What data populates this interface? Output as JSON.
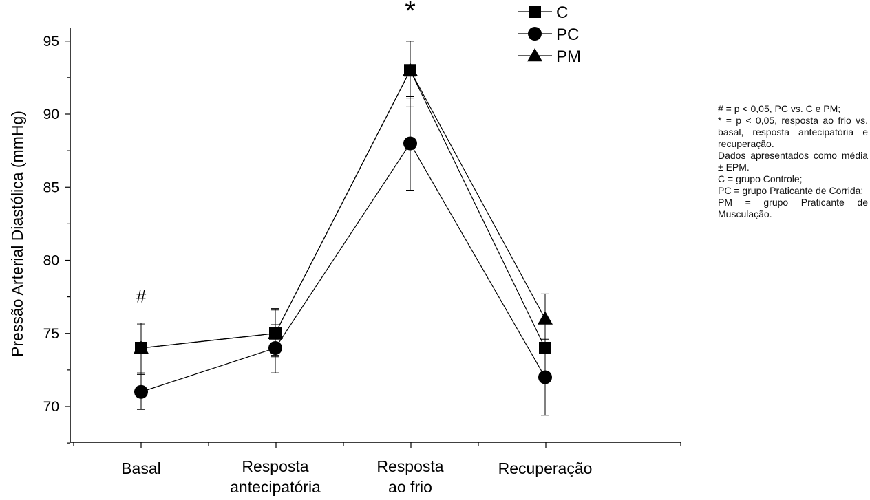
{
  "chart_data": {
    "type": "line",
    "ylabel": "Pressão Arterial Diastólica (mmHg)",
    "xlabel": "",
    "categories": [
      [
        "Basal"
      ],
      [
        "Resposta",
        "antecipatória"
      ],
      [
        "Resposta",
        "ao frio"
      ],
      [
        "Recuperação"
      ]
    ],
    "ylim": [
      67.5,
      95
    ],
    "yticks": [
      70,
      75,
      80,
      85,
      90,
      95
    ],
    "grid": false,
    "legend_position": "top-right",
    "series": [
      {
        "name": "C",
        "marker": "square",
        "values": [
          74,
          75,
          93,
          74
        ],
        "err_upper": [
          75.7,
          76.6,
          95,
          74
        ],
        "err_lower": [
          72.3,
          73.5,
          91.1,
          74
        ]
      },
      {
        "name": "PC",
        "marker": "circle",
        "values": [
          71,
          74,
          88,
          72
        ],
        "err_upper": [
          72.2,
          75.6,
          91.2,
          74.6
        ],
        "err_lower": [
          69.8,
          72.3,
          84.8,
          69.4
        ]
      },
      {
        "name": "PM",
        "marker": "triangle",
        "values": [
          74,
          75,
          93,
          76
        ],
        "err_upper": [
          75.6,
          76.7,
          95,
          77.7
        ],
        "err_lower": [
          72.2,
          73.4,
          90.5,
          74.3
        ]
      }
    ],
    "annotations": [
      {
        "text": "#",
        "category_index": 0,
        "y": 77.5
      },
      {
        "text": "*",
        "category_index": 2,
        "y": 97.2
      }
    ]
  },
  "notes": [
    "# = p < 0,05, PC vs. C e PM;",
    "* = p < 0,05, resposta ao frio vs. basal, resposta antecipatória e recuperação.",
    "Dados apresentados como média ± EPM.",
    "C = grupo Controle;",
    "PC = grupo Praticante de Corrida;",
    "PM = grupo Praticante de Musculação."
  ]
}
